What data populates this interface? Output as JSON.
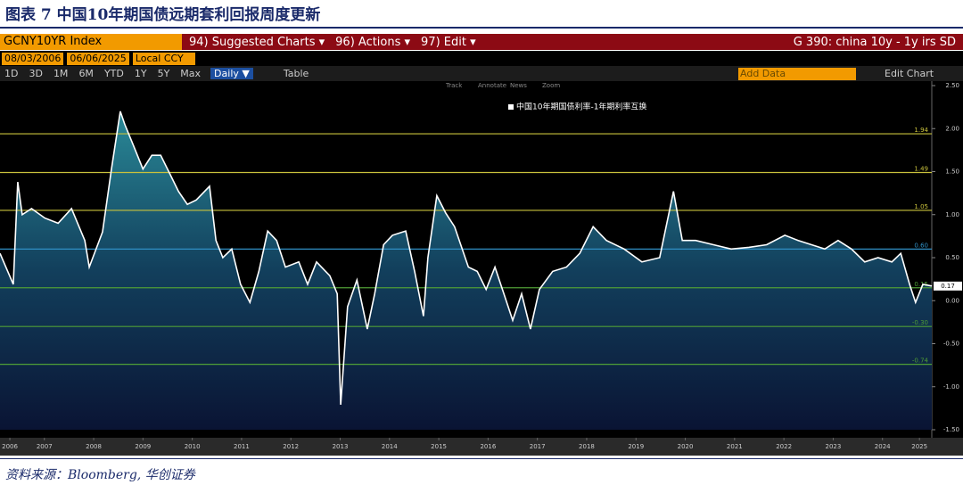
{
  "header": {
    "title": "图表 7 中国10年期国债远期套利回报周度更新"
  },
  "toolbar": {
    "ticker": "GCNY10YR Index",
    "menus": [
      "94) Suggested Charts ▾",
      "96) Actions ▾",
      "97) Edit ▾"
    ],
    "chart_name": "G 390: china 10y - 1y irs SD",
    "start_date": "08/03/2006",
    "end_date": "06/06/2025",
    "currency": "Local CCY",
    "ranges": [
      "1D",
      "3D",
      "1M",
      "6M",
      "YTD",
      "1Y",
      "5Y",
      "Max"
    ],
    "frequency": "Daily ▼",
    "table": "Table",
    "add_data": "Add Data",
    "edit_chart": "Edit Chart",
    "tools": [
      "Track",
      "Annotate",
      "News",
      "Zoom"
    ]
  },
  "chart_data": {
    "type": "area",
    "x": [
      2006.6,
      2006.87,
      2006.96,
      2007.05,
      2007.24,
      2007.51,
      2007.78,
      2008.05,
      2008.32,
      2008.41,
      2008.68,
      2008.86,
      2009.04,
      2009.13,
      2009.31,
      2009.5,
      2009.68,
      2009.86,
      2010.04,
      2010.22,
      2010.4,
      2010.58,
      2010.85,
      2010.98,
      2011.12,
      2011.3,
      2011.48,
      2011.67,
      2011.85,
      2012.03,
      2012.21,
      2012.39,
      2012.66,
      2012.84,
      2013.02,
      2013.29,
      2013.44,
      2013.51,
      2013.65,
      2013.84,
      2014.05,
      2014.2,
      2014.38,
      2014.56,
      2014.83,
      2015.01,
      2015.19,
      2015.28,
      2015.46,
      2015.64,
      2015.82,
      2016.1,
      2016.28,
      2016.46,
      2016.64,
      2016.82,
      2017.0,
      2017.18,
      2017.36,
      2017.54,
      2017.81,
      2018.09,
      2018.36,
      2018.63,
      2018.9,
      2019.26,
      2019.62,
      2019.98,
      2020.26,
      2020.44,
      2020.71,
      2021.07,
      2021.43,
      2021.79,
      2022.15,
      2022.52,
      2022.79,
      2023.06,
      2023.33,
      2023.6,
      2023.87,
      2024.14,
      2024.41,
      2024.69,
      2024.87,
      2025.05,
      2025.17,
      2025.32,
      2025.5
    ],
    "series": [
      {
        "name": "中国10年期国债利率-1年期利率互换",
        "color": "#ffffff",
        "values": [
          0.55,
          0.19,
          1.38,
          1.0,
          1.07,
          0.96,
          0.9,
          1.07,
          0.7,
          0.39,
          0.8,
          1.53,
          2.2,
          2.05,
          1.8,
          1.53,
          1.69,
          1.69,
          1.48,
          1.27,
          1.12,
          1.17,
          1.33,
          0.7,
          0.5,
          0.6,
          0.19,
          -0.02,
          0.34,
          0.81,
          0.7,
          0.39,
          0.45,
          0.19,
          0.45,
          0.29,
          0.08,
          -1.21,
          -0.07,
          0.24,
          -0.33,
          0.08,
          0.65,
          0.76,
          0.81,
          0.34,
          -0.18,
          0.5,
          1.22,
          1.02,
          0.86,
          0.39,
          0.34,
          0.13,
          0.39,
          0.08,
          -0.23,
          0.08,
          -0.33,
          0.13,
          0.34,
          0.39,
          0.55,
          0.86,
          0.7,
          0.6,
          0.45,
          0.5,
          1.27,
          0.7,
          0.7,
          0.65,
          0.6,
          0.62,
          0.65,
          0.76,
          0.7,
          0.65,
          0.6,
          0.7,
          0.6,
          0.45,
          0.5,
          0.45,
          0.55,
          0.19,
          -0.02,
          0.19,
          0.17
        ]
      }
    ],
    "xlim": [
      2006.6,
      2025.5
    ],
    "ylim": [
      -1.5,
      2.5
    ],
    "xticks": [
      {
        "value": 2006.8,
        "label": "2006"
      },
      {
        "value": 2007.5,
        "label": "2007"
      },
      {
        "value": 2008.5,
        "label": "2008"
      },
      {
        "value": 2009.5,
        "label": "2009"
      },
      {
        "value": 2010.5,
        "label": "2010"
      },
      {
        "value": 2011.5,
        "label": "2011"
      },
      {
        "value": 2012.5,
        "label": "2012"
      },
      {
        "value": 2013.5,
        "label": "2013"
      },
      {
        "value": 2014.5,
        "label": "2014"
      },
      {
        "value": 2015.5,
        "label": "2015"
      },
      {
        "value": 2016.5,
        "label": "2016"
      },
      {
        "value": 2017.5,
        "label": "2017"
      },
      {
        "value": 2018.5,
        "label": "2018"
      },
      {
        "value": 2019.5,
        "label": "2019"
      },
      {
        "value": 2020.5,
        "label": "2020"
      },
      {
        "value": 2021.5,
        "label": "2021"
      },
      {
        "value": 2022.5,
        "label": "2022"
      },
      {
        "value": 2023.5,
        "label": "2023"
      },
      {
        "value": 2024.5,
        "label": "2024"
      },
      {
        "value": 2025.25,
        "label": "2025"
      }
    ],
    "yticks": [
      {
        "value": -1.5,
        "label": "-1.50"
      },
      {
        "value": -1,
        "label": "-1.00"
      },
      {
        "value": -0.5,
        "label": "-0.50"
      },
      {
        "value": 0,
        "label": "0.00"
      },
      {
        "value": 0.5,
        "label": "0.50"
      },
      {
        "value": 1,
        "label": "1.00"
      },
      {
        "value": 1.5,
        "label": "1.50"
      },
      {
        "value": 2,
        "label": "2.00"
      },
      {
        "value": 2.5,
        "label": "2.50"
      }
    ],
    "reference_lines": [
      {
        "value": 1.94,
        "label": "1.94",
        "color": "#c9c23c"
      },
      {
        "value": 1.49,
        "label": "1.49",
        "color": "#c9c23c"
      },
      {
        "value": 1.05,
        "label": "1.05",
        "color": "#c9c23c"
      },
      {
        "value": 0.6,
        "label": "0.60",
        "color": "#2f8fc4"
      },
      {
        "value": 0.15,
        "label": "0.15",
        "color": "#4f9e36"
      },
      {
        "value": -0.3,
        "label": "-0.30",
        "color": "#4f9e36"
      },
      {
        "value": -0.74,
        "label": "-0.74",
        "color": "#4f9e36"
      }
    ]
  },
  "footer": {
    "source": "资料来源：Bloomberg, 华创证券"
  }
}
